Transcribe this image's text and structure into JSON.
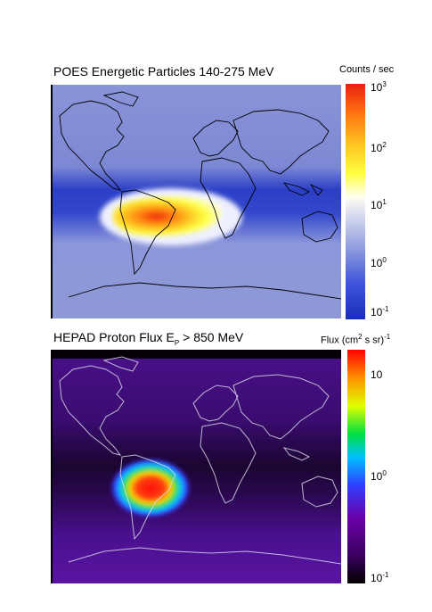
{
  "panels": [
    {
      "title": "POES Energetic Particles 140-275 MeV",
      "colorbar_title": "Counts / sec",
      "colorbar_ticks": [
        {
          "base": "10",
          "exp": "3"
        },
        {
          "base": "10",
          "exp": "2"
        },
        {
          "base": "10",
          "exp": "1"
        },
        {
          "base": "10",
          "exp": "0"
        },
        {
          "base": "10",
          "exp": "-1"
        }
      ],
      "colormap": [
        "#1a2fb8",
        "#3d53d9",
        "#8d9be0",
        "#dcdff0",
        "#fffff0",
        "#ffff40",
        "#ffc020",
        "#ff7010",
        "#e82010"
      ],
      "background_color": "#8a94d8"
    },
    {
      "title_parts": {
        "main": "HEPAD Proton Flux  E",
        "sub": "P",
        "rest": " > 850 MeV"
      },
      "colorbar_title_parts": {
        "main": "Flux (cm",
        "sup1": "2",
        "mid": " s sr)",
        "sup2": "-1"
      },
      "colorbar_ticks": [
        {
          "base": "10",
          "exp": ""
        },
        {
          "base": "10",
          "exp": "0"
        },
        {
          "base": "10",
          "exp": "-1"
        }
      ],
      "colormap": [
        "#000000",
        "#3a0060",
        "#6a00a8",
        "#3040ff",
        "#00c0ff",
        "#00e040",
        "#e0ff00",
        "#ff9000",
        "#ff0000"
      ],
      "background_color": "#3c0a6e"
    }
  ]
}
